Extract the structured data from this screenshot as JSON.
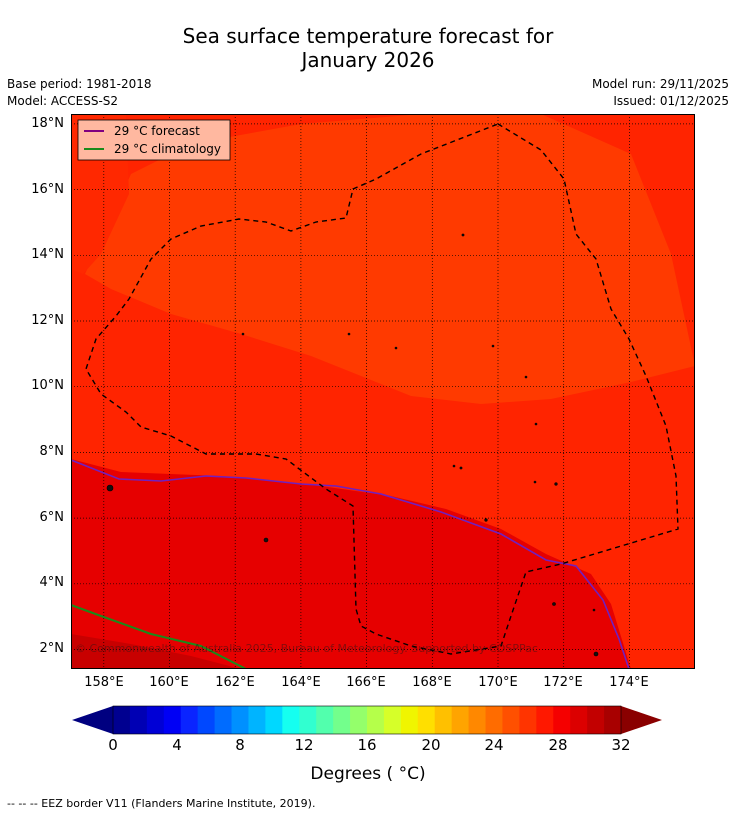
{
  "title": {
    "line1": "Sea surface temperature forecast for",
    "line2": "January 2026"
  },
  "info": {
    "base_period": "Base period: 1981-2018",
    "model": "Model: ACCESS-S2",
    "model_run": "Model run: 29/11/2025",
    "issued": "Issued: 01/12/2025"
  },
  "legend": {
    "forecast_label": "29 °C  forecast",
    "forecast_color": "#800080",
    "climatology_label": "29 °C  climatology",
    "climatology_color": "#1a8a1a"
  },
  "map": {
    "lat_range": [
      1.4,
      18.3
    ],
    "lon_range": [
      157.0,
      176.0
    ],
    "lat_ticks": [
      "18°N",
      "16°N",
      "14°N",
      "12°N",
      "10°N",
      "8°N",
      "6°N",
      "4°N",
      "2°N"
    ],
    "lon_ticks": [
      "158°E",
      "160°E",
      "162°E",
      "164°E",
      "166°E",
      "168°E",
      "170°E",
      "172°E",
      "174°E"
    ],
    "copyright": "© Commonwealth of Australia 2025, Bureau of Meteorology. Supported by COSPPac"
  },
  "colorbar": {
    "ticks": [
      "0",
      "4",
      "8",
      "12",
      "16",
      "20",
      "24",
      "28",
      "32"
    ],
    "unit_label": "Degrees ( °C)",
    "colors": [
      "#000090",
      "#0000b4",
      "#0000d6",
      "#0000f5",
      "#0a24ff",
      "#0048ff",
      "#006cff",
      "#0090ff",
      "#00b4ff",
      "#00d8ff",
      "#15fff0",
      "#31ffd0",
      "#52ffad",
      "#73ff8c",
      "#94ff6b",
      "#b5ff4a",
      "#d6ff29",
      "#f0f500",
      "#ffdf00",
      "#ffc000",
      "#ffa400",
      "#ff8800",
      "#ff6c00",
      "#ff5000",
      "#ff3400",
      "#ff1800",
      "#f50000",
      "#dc0000",
      "#c20000",
      "#a80000"
    ],
    "left_arrow_color": "#000080",
    "right_arrow_color": "#8a0000"
  },
  "footer": {
    "eez_note": "--  --  -- EEZ border V11 (Flanders Marine Institute, 2019)."
  }
}
